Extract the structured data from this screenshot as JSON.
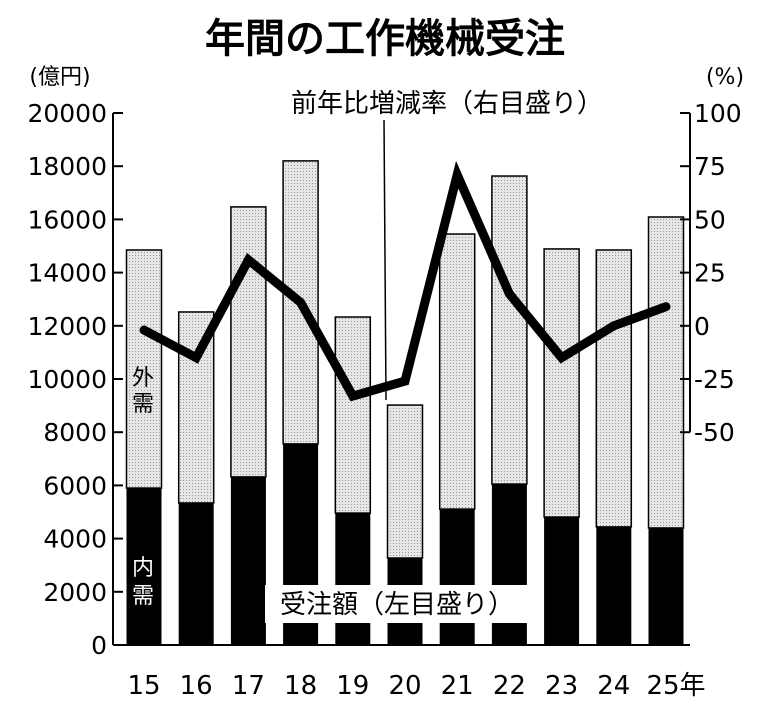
{
  "chart_data": {
    "type": "bar+line",
    "title": "年間の工作機械受注",
    "left_unit": "(億円)",
    "right_unit": "(%)",
    "x_suffix": "年",
    "categories": [
      "15",
      "16",
      "17",
      "18",
      "19",
      "20",
      "21",
      "22",
      "23",
      "24",
      "25"
    ],
    "series": [
      {
        "name": "内需",
        "type": "bar-stacked",
        "values": [
          5900,
          5340,
          6320,
          7560,
          4960,
          3270,
          5110,
          6050,
          4810,
          4440,
          4400
        ]
      },
      {
        "name": "外需",
        "type": "bar-stacked",
        "values": [
          8950,
          7180,
          10150,
          10640,
          7370,
          5750,
          10340,
          11580,
          10080,
          10410,
          11690
        ]
      },
      {
        "name": "前年比増減率",
        "type": "line",
        "axis": "right",
        "values": [
          -2,
          -15,
          31,
          11,
          -33,
          -26,
          71,
          15,
          -15,
          0,
          9
        ]
      }
    ],
    "left_axis": {
      "ylim": [
        0,
        20000
      ],
      "ticks": [
        "0",
        "2000",
        "4000",
        "6000",
        "8000",
        "10000",
        "12000",
        "14000",
        "16000",
        "18000",
        "20000"
      ]
    },
    "right_axis": {
      "ylim": [
        -50,
        100
      ],
      "ticks": [
        "-50",
        "-25",
        "0",
        "25",
        "50",
        "75",
        "100"
      ]
    },
    "annotations": {
      "line_label": "前年比増減率（右目盛り）",
      "bar_label": "受注額（左目盛り）",
      "foreign": "外需",
      "domestic": "内需"
    },
    "colors": {
      "domestic": "#000000",
      "foreign": "#dcdcdc",
      "line": "#000000"
    }
  }
}
